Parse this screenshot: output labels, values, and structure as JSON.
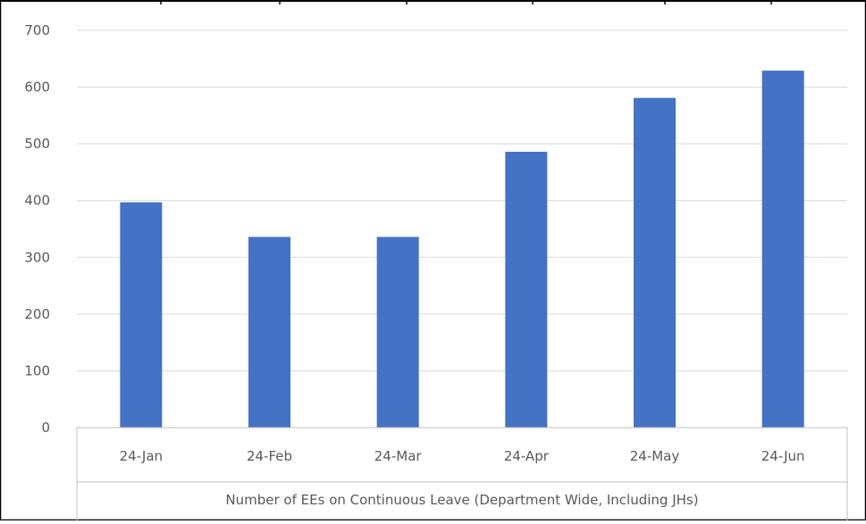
{
  "chart_data": {
    "type": "bar",
    "categories": [
      "24-Jan",
      "24-Feb",
      "24-Mar",
      "24-Apr",
      "24-May",
      "24-Jun"
    ],
    "series": [
      {
        "values": [
          397,
          336,
          336,
          486,
          581,
          629
        ]
      }
    ],
    "title": "",
    "xlabel": "Number of EEs on Continuous Leave (Department Wide, Including JHs)",
    "ylabel": "",
    "ylim": [
      0,
      700
    ],
    "yticks": [
      0,
      100,
      200,
      300,
      400,
      500,
      600,
      700
    ],
    "grid": true,
    "legend": "none",
    "colors": {
      "bar": "#4472C4",
      "grid": "#D9D9D9",
      "axis": "#BFBFBF",
      "text": "#595959",
      "frame": "#000000"
    }
  }
}
